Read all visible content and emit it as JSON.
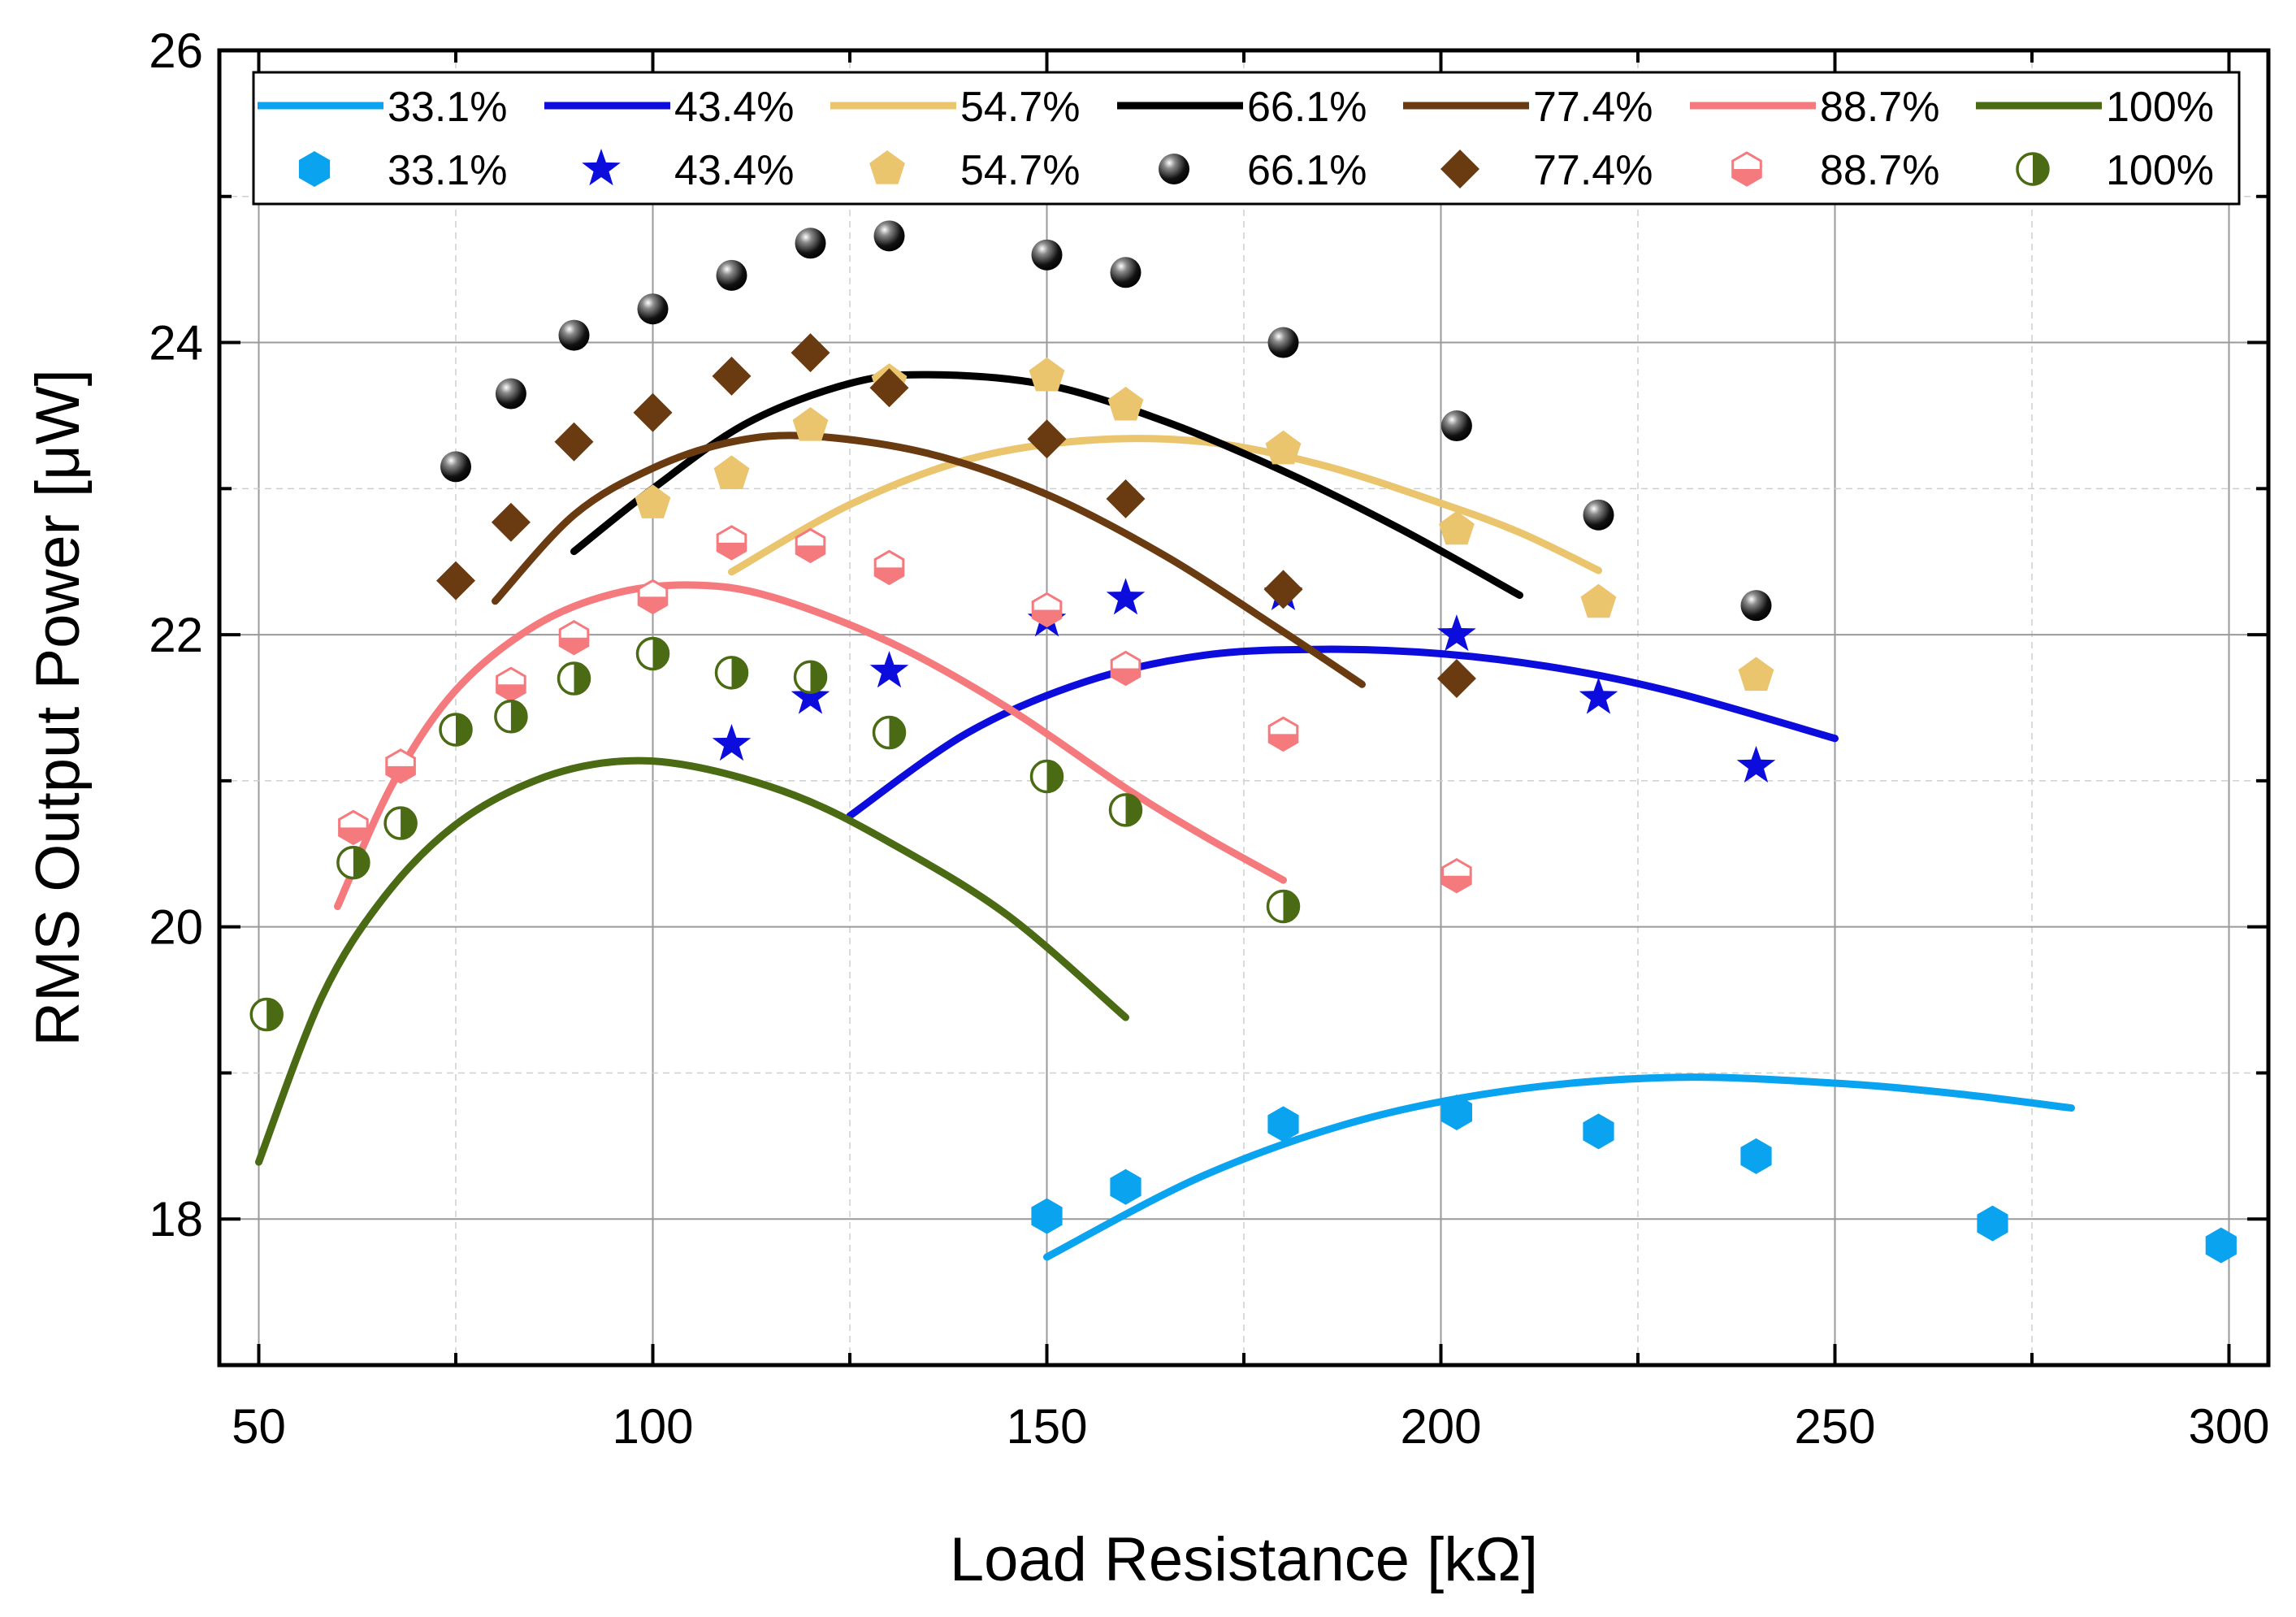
{
  "chart_data": {
    "type": "scatter",
    "xlabel": "Load Resistance [kΩ]",
    "ylabel": "RMS Output Power [μW]",
    "xlim": [
      45,
      305
    ],
    "ylim": [
      17,
      26
    ],
    "xticks": [
      50,
      100,
      150,
      200,
      250,
      300
    ],
    "yticks": [
      18,
      20,
      22,
      24,
      26
    ],
    "grid": true,
    "legend_position": "top",
    "series": [
      {
        "name": "33.1%",
        "color": "#0aa3ef",
        "marker": "hexagon",
        "points": [
          [
            150,
            18.02
          ],
          [
            160,
            18.22
          ],
          [
            180,
            18.65
          ],
          [
            202,
            18.73
          ],
          [
            220,
            18.6
          ],
          [
            240,
            18.43
          ],
          [
            270,
            17.97
          ],
          [
            299,
            17.82
          ]
        ],
        "fit": [
          [
            150,
            17.74
          ],
          [
            170,
            18.3
          ],
          [
            190,
            18.68
          ],
          [
            210,
            18.89
          ],
          [
            230,
            18.97
          ],
          [
            250,
            18.93
          ],
          [
            265,
            18.86
          ],
          [
            280,
            18.76
          ]
        ]
      },
      {
        "name": "43.4%",
        "color": "#0c0cdc",
        "marker": "star",
        "points": [
          [
            110,
            21.25
          ],
          [
            120,
            21.57
          ],
          [
            130,
            21.75
          ],
          [
            150,
            22.1
          ],
          [
            160,
            22.25
          ],
          [
            180,
            22.28
          ],
          [
            202,
            22.0
          ],
          [
            220,
            21.57
          ],
          [
            240,
            21.1
          ]
        ],
        "fit": [
          [
            125,
            20.76
          ],
          [
            140,
            21.33
          ],
          [
            155,
            21.68
          ],
          [
            170,
            21.86
          ],
          [
            185,
            21.9
          ],
          [
            200,
            21.87
          ],
          [
            215,
            21.77
          ],
          [
            230,
            21.6
          ],
          [
            250,
            21.29
          ]
        ]
      },
      {
        "name": "54.7%",
        "color": "#ebc46e",
        "marker": "pentagon",
        "points": [
          [
            100,
            22.9
          ],
          [
            110,
            23.1
          ],
          [
            120,
            23.43
          ],
          [
            130,
            23.73
          ],
          [
            150,
            23.77
          ],
          [
            160,
            23.57
          ],
          [
            180,
            23.27
          ],
          [
            202,
            22.72
          ],
          [
            220,
            22.22
          ],
          [
            240,
            21.72
          ]
        ],
        "fit": [
          [
            110,
            22.43
          ],
          [
            125,
            22.89
          ],
          [
            140,
            23.2
          ],
          [
            155,
            23.33
          ],
          [
            170,
            23.32
          ],
          [
            185,
            23.16
          ],
          [
            200,
            22.9
          ],
          [
            210,
            22.7
          ],
          [
            220,
            22.44
          ]
        ]
      },
      {
        "name": "66.1%",
        "color": "#000000",
        "marker": "sphere",
        "points": [
          [
            75,
            23.15
          ],
          [
            82,
            23.65
          ],
          [
            90,
            24.05
          ],
          [
            100,
            24.23
          ],
          [
            110,
            24.46
          ],
          [
            120,
            24.68
          ],
          [
            130,
            24.73
          ],
          [
            150,
            24.6
          ],
          [
            160,
            24.48
          ],
          [
            180,
            24.0
          ],
          [
            202,
            23.43
          ],
          [
            220,
            22.82
          ],
          [
            240,
            22.2
          ]
        ],
        "fit": [
          [
            90,
            22.57
          ],
          [
            100,
            23.0
          ],
          [
            112,
            23.45
          ],
          [
            125,
            23.72
          ],
          [
            135,
            23.78
          ],
          [
            150,
            23.71
          ],
          [
            165,
            23.46
          ],
          [
            180,
            23.12
          ],
          [
            195,
            22.72
          ],
          [
            210,
            22.27
          ]
        ]
      },
      {
        "name": "77.4%",
        "color": "#6a3a10",
        "marker": "diamond",
        "points": [
          [
            75,
            22.37
          ],
          [
            82,
            22.77
          ],
          [
            90,
            23.32
          ],
          [
            100,
            23.52
          ],
          [
            110,
            23.77
          ],
          [
            120,
            23.93
          ],
          [
            130,
            23.69
          ],
          [
            150,
            23.34
          ],
          [
            160,
            22.93
          ],
          [
            180,
            22.31
          ],
          [
            202,
            21.7
          ]
        ],
        "fit": [
          [
            80,
            22.23
          ],
          [
            90,
            22.82
          ],
          [
            100,
            23.14
          ],
          [
            110,
            23.32
          ],
          [
            120,
            23.36
          ],
          [
            135,
            23.24
          ],
          [
            150,
            22.96
          ],
          [
            165,
            22.54
          ],
          [
            180,
            22.02
          ],
          [
            190,
            21.66
          ]
        ]
      },
      {
        "name": "88.7%",
        "color": "#f57a7e",
        "marker": "half-hexagon",
        "points": [
          [
            62,
            20.68
          ],
          [
            68,
            21.1
          ],
          [
            82,
            21.66
          ],
          [
            90,
            21.98
          ],
          [
            100,
            22.26
          ],
          [
            110,
            22.63
          ],
          [
            120,
            22.61
          ],
          [
            130,
            22.46
          ],
          [
            150,
            22.17
          ],
          [
            160,
            21.77
          ],
          [
            180,
            21.32
          ],
          [
            202,
            20.35
          ]
        ],
        "fit": [
          [
            60,
            20.14
          ],
          [
            67,
            20.98
          ],
          [
            75,
            21.62
          ],
          [
            85,
            22.06
          ],
          [
            95,
            22.28
          ],
          [
            105,
            22.34
          ],
          [
            115,
            22.26
          ],
          [
            130,
            21.95
          ],
          [
            145,
            21.5
          ],
          [
            160,
            20.95
          ],
          [
            170,
            20.62
          ],
          [
            180,
            20.32
          ]
        ]
      },
      {
        "name": "100%",
        "color": "#4a6a14",
        "marker": "half-circle",
        "points": [
          [
            51,
            19.4
          ],
          [
            62,
            20.44
          ],
          [
            68,
            20.71
          ],
          [
            75,
            21.35
          ],
          [
            82,
            21.44
          ],
          [
            90,
            21.7
          ],
          [
            100,
            21.87
          ],
          [
            110,
            21.74
          ],
          [
            120,
            21.71
          ],
          [
            130,
            21.33
          ],
          [
            150,
            21.03
          ],
          [
            160,
            20.8
          ],
          [
            180,
            20.14
          ]
        ],
        "fit": [
          [
            50,
            18.39
          ],
          [
            58,
            19.52
          ],
          [
            66,
            20.21
          ],
          [
            75,
            20.7
          ],
          [
            85,
            21.0
          ],
          [
            95,
            21.13
          ],
          [
            105,
            21.1
          ],
          [
            118,
            20.9
          ],
          [
            130,
            20.58
          ],
          [
            145,
            20.08
          ],
          [
            160,
            19.38
          ]
        ]
      }
    ]
  }
}
